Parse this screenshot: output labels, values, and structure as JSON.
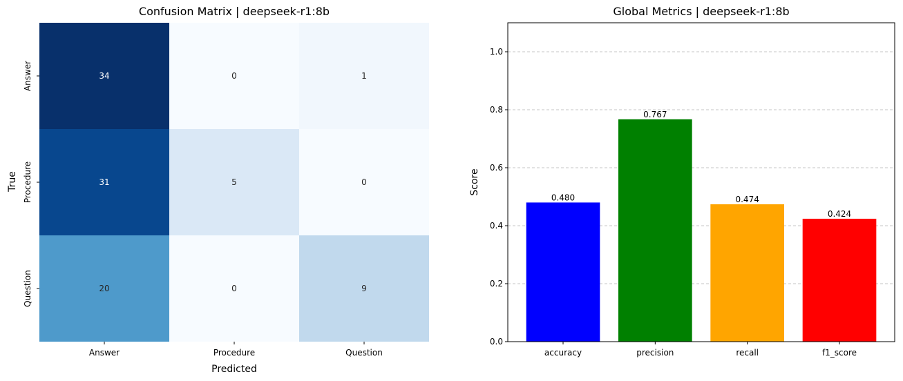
{
  "chart_data": [
    {
      "type": "heatmap",
      "title": "Confusion Matrix | deepseek-r1:8b",
      "xlabel": "Predicted",
      "ylabel": "True",
      "x_categories": [
        "Answer",
        "Procedure",
        "Question"
      ],
      "y_categories": [
        "Answer",
        "Procedure",
        "Question"
      ],
      "values": [
        [
          34,
          0,
          1
        ],
        [
          31,
          5,
          0
        ],
        [
          20,
          0,
          9
        ]
      ],
      "colormap": "Blues",
      "value_range": [
        0,
        34
      ]
    },
    {
      "type": "bar",
      "title": "Global Metrics | deepseek-r1:8b",
      "xlabel": "",
      "ylabel": "Score",
      "categories": [
        "accuracy",
        "precision",
        "recall",
        "f1_score"
      ],
      "values": [
        0.48,
        0.767,
        0.474,
        0.424
      ],
      "value_labels": [
        "0.480",
        "0.767",
        "0.474",
        "0.424"
      ],
      "colors": [
        "#0000ff",
        "#008000",
        "#ffa500",
        "#ff0000"
      ],
      "ylim": [
        0,
        1.1
      ],
      "yticks": [
        0.0,
        0.2,
        0.4,
        0.6,
        0.8,
        1.0
      ],
      "ytick_labels": [
        "0.0",
        "0.2",
        "0.4",
        "0.6",
        "0.8",
        "1.0"
      ],
      "grid": "y-dashed"
    }
  ]
}
